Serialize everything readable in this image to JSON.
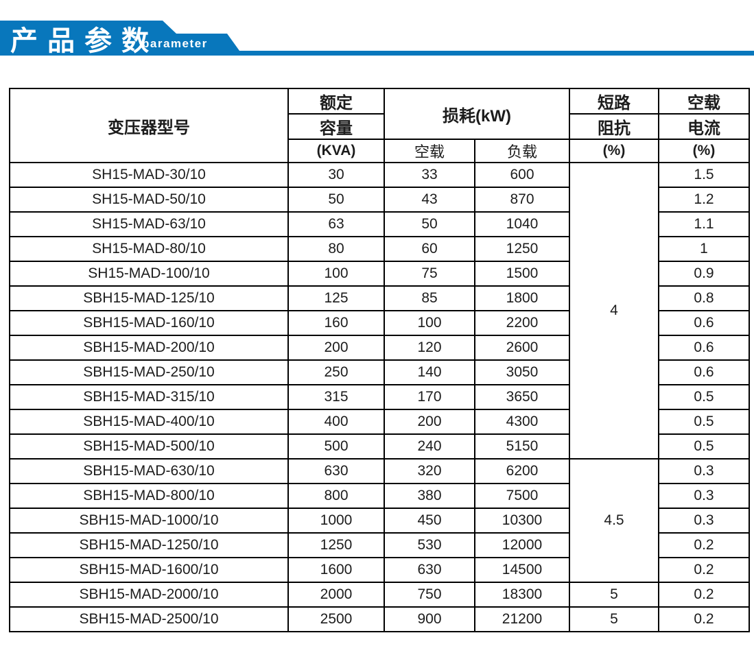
{
  "banner": {
    "title": "产品参数",
    "subtitle": "parameter",
    "color": "#0877bc"
  },
  "table": {
    "headers": {
      "model": "变压器型号",
      "rated1": "额定",
      "rated2": "容量",
      "rated3": "(KVA)",
      "loss": "损耗(kW)",
      "loss_noload": "空载",
      "loss_load": "负载",
      "imp1": "短路",
      "imp2": "阻抗",
      "imp3": "(%)",
      "cur1": "空载",
      "cur2": "电流",
      "cur3": "(%)"
    },
    "rows": [
      {
        "model": "SH15-MAD-30/10",
        "kva": "30",
        "noload": "33",
        "load": "600",
        "current": "1.5"
      },
      {
        "model": "SH15-MAD-50/10",
        "kva": "50",
        "noload": "43",
        "load": "870",
        "current": "1.2"
      },
      {
        "model": "SH15-MAD-63/10",
        "kva": "63",
        "noload": "50",
        "load": "1040",
        "current": "1.1"
      },
      {
        "model": "SH15-MAD-80/10",
        "kva": "80",
        "noload": "60",
        "load": "1250",
        "current": "1"
      },
      {
        "model": "SH15-MAD-100/10",
        "kva": "100",
        "noload": "75",
        "load": "1500",
        "current": "0.9"
      },
      {
        "model": "SBH15-MAD-125/10",
        "kva": "125",
        "noload": "85",
        "load": "1800",
        "current": "0.8"
      },
      {
        "model": "SBH15-MAD-160/10",
        "kva": "160",
        "noload": "100",
        "load": "2200",
        "current": "0.6"
      },
      {
        "model": "SBH15-MAD-200/10",
        "kva": "200",
        "noload": "120",
        "load": "2600",
        "current": "0.6"
      },
      {
        "model": "SBH15-MAD-250/10",
        "kva": "250",
        "noload": "140",
        "load": "3050",
        "current": "0.6"
      },
      {
        "model": "SBH15-MAD-315/10",
        "kva": "315",
        "noload": "170",
        "load": "3650",
        "current": "0.5"
      },
      {
        "model": "SBH15-MAD-400/10",
        "kva": "400",
        "noload": "200",
        "load": "4300",
        "current": "0.5"
      },
      {
        "model": "SBH15-MAD-500/10",
        "kva": "500",
        "noload": "240",
        "load": "5150",
        "current": "0.5"
      },
      {
        "model": "SBH15-MAD-630/10",
        "kva": "630",
        "noload": "320",
        "load": "6200",
        "current": "0.3"
      },
      {
        "model": "SBH15-MAD-800/10",
        "kva": "800",
        "noload": "380",
        "load": "7500",
        "current": "0.3"
      },
      {
        "model": "SBH15-MAD-1000/10",
        "kva": "1000",
        "noload": "450",
        "load": "10300",
        "current": "0.3"
      },
      {
        "model": "SBH15-MAD-1250/10",
        "kva": "1250",
        "noload": "530",
        "load": "12000",
        "current": "0.2"
      },
      {
        "model": "SBH15-MAD-1600/10",
        "kva": "1600",
        "noload": "630",
        "load": "14500",
        "current": "0.2"
      },
      {
        "model": "SBH15-MAD-2000/10",
        "kva": "2000",
        "noload": "750",
        "load": "18300",
        "current": "0.2"
      },
      {
        "model": "SBH15-MAD-2500/10",
        "kva": "2500",
        "noload": "900",
        "load": "21200",
        "current": "0.2"
      }
    ],
    "impedance_groups": [
      {
        "value": "4",
        "span": 12
      },
      {
        "value": "4.5",
        "span": 5
      },
      {
        "value": "5",
        "span": 1
      },
      {
        "value": "5",
        "span": 1
      }
    ]
  }
}
